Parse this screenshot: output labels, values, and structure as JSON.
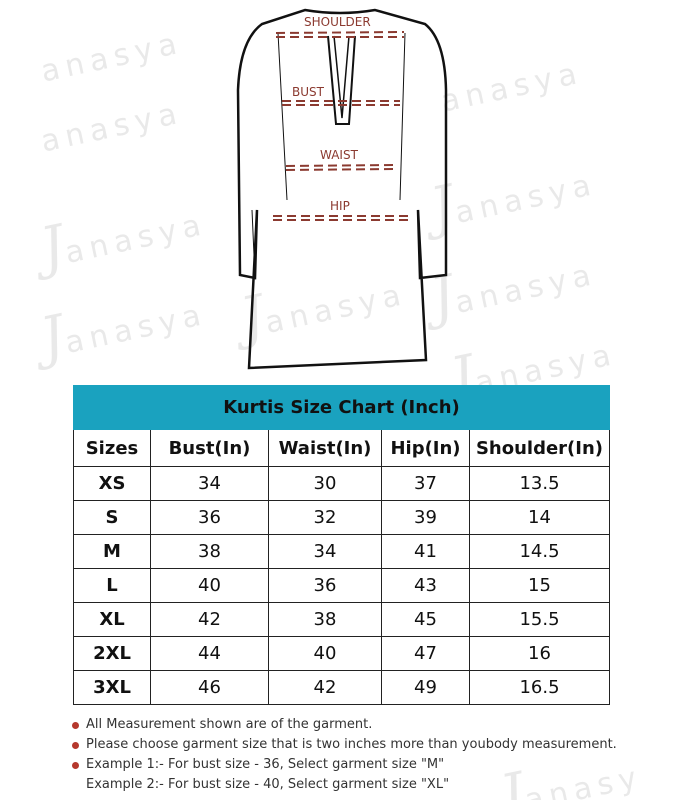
{
  "watermark": "Janasya",
  "garment_labels": {
    "shoulder": "SHOULDER",
    "bust": "BUST",
    "waist": "WAIST",
    "hip": "HIP"
  },
  "table": {
    "title": "Kurtis Size Chart (Inch)",
    "headers": [
      "Sizes",
      "Bust(In)",
      "Waist(In)",
      "Hip(In)",
      "Shoulder(In)"
    ],
    "rows": [
      [
        "XS",
        "34",
        "30",
        "37",
        "13.5"
      ],
      [
        "S",
        "36",
        "32",
        "39",
        "14"
      ],
      [
        "M",
        "38",
        "34",
        "41",
        "14.5"
      ],
      [
        "L",
        "40",
        "36",
        "43",
        "15"
      ],
      [
        "XL",
        "42",
        "38",
        "45",
        "15.5"
      ],
      [
        "2XL",
        "44",
        "40",
        "47",
        "16"
      ],
      [
        "3XL",
        "46",
        "42",
        "49",
        "16.5"
      ]
    ]
  },
  "notes": [
    "All Measurement shown are of the garment.",
    "Please choose garment size that is two inches more than youbody measurement.",
    "Example 1:- For bust size - 36, Select garment size \"M\"",
    "Example 2:- For bust size - 40, Select garment size  \"XL\""
  ],
  "colors": {
    "header_band": "#1aa2bf",
    "measure_lines": "#8b3a30",
    "bullets": "#b5382c"
  }
}
